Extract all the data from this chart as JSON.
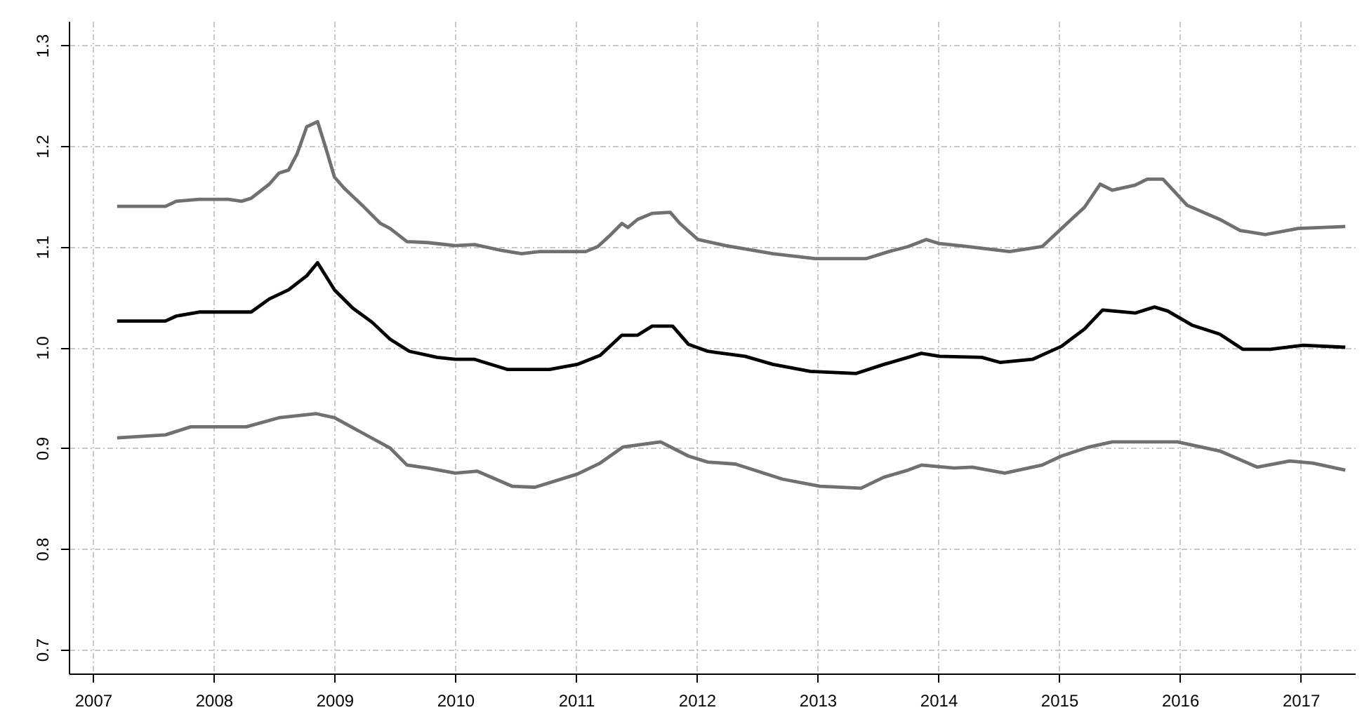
{
  "chart_data": {
    "type": "line",
    "xlim": [
      2006.8,
      2017.45
    ],
    "ylim": [
      0.676,
      1.324
    ],
    "xticks": [
      2007,
      2008,
      2009,
      2010,
      2011,
      2012,
      2013,
      2014,
      2015,
      2016,
      2017
    ],
    "yticks": [
      0.7,
      0.8,
      0.9,
      {
        "value": 1,
        "label": "1.0"
      },
      1.1,
      1.2,
      1.3
    ],
    "grid": true,
    "marker": "none",
    "line_style": "solid",
    "series": [
      {
        "color": "#707070",
        "x": [
          2007.2,
          2007.6,
          2007.69,
          2007.88,
          2008.12,
          2008.23,
          2008.31,
          2008.46,
          2008.54,
          2008.62,
          2008.69,
          2008.77,
          2008.86,
          2008.92,
          2009.0,
          2009.08,
          2009.23,
          2009.38,
          2009.46,
          2009.6,
          2009.77,
          2010.0,
          2010.16,
          2010.39,
          2010.55,
          2010.7,
          2011.08,
          2011.18,
          2011.28,
          2011.38,
          2011.43,
          2011.51,
          2011.63,
          2011.78,
          2011.86,
          2012.01,
          2012.24,
          2012.63,
          2012.98,
          2013.4,
          2013.59,
          2013.75,
          2013.9,
          2014.01,
          2014.24,
          2014.59,
          2014.86,
          2015.02,
          2015.21,
          2015.34,
          2015.44,
          2015.63,
          2015.73,
          2015.86,
          2016.06,
          2016.33,
          2016.5,
          2016.71,
          2016.98,
          2017.37
        ],
        "values": [
          1.14,
          1.14,
          1.145,
          1.147,
          1.147,
          1.145,
          1.148,
          1.162,
          1.173,
          1.176,
          1.192,
          1.219,
          1.224,
          1.201,
          1.169,
          1.158,
          1.141,
          1.123,
          1.118,
          1.105,
          1.104,
          1.101,
          1.102,
          1.096,
          1.093,
          1.095,
          1.095,
          1.1,
          1.111,
          1.123,
          1.119,
          1.127,
          1.133,
          1.134,
          1.123,
          1.107,
          1.101,
          1.093,
          1.088,
          1.088,
          1.095,
          1.1,
          1.107,
          1.103,
          1.1,
          1.095,
          1.1,
          1.118,
          1.139,
          1.162,
          1.156,
          1.161,
          1.167,
          1.167,
          1.141,
          1.127,
          1.116,
          1.112,
          1.118,
          1.12
        ]
      },
      {
        "color": "#000000",
        "x": [
          2007.2,
          2007.6,
          2007.69,
          2007.88,
          2008.31,
          2008.46,
          2008.62,
          2008.77,
          2008.86,
          2009.0,
          2009.15,
          2009.31,
          2009.46,
          2009.62,
          2009.85,
          2010.0,
          2010.16,
          2010.43,
          2010.78,
          2011.01,
          2011.2,
          2011.38,
          2011.51,
          2011.63,
          2011.8,
          2011.93,
          2012.09,
          2012.4,
          2012.63,
          2012.94,
          2013.32,
          2013.55,
          2013.75,
          2013.86,
          2014.01,
          2014.36,
          2014.51,
          2014.78,
          2015.02,
          2015.21,
          2015.36,
          2015.63,
          2015.79,
          2015.9,
          2016.1,
          2016.33,
          2016.52,
          2016.75,
          2017.02,
          2017.37
        ],
        "values": [
          1.026,
          1.026,
          1.031,
          1.035,
          1.035,
          1.048,
          1.057,
          1.071,
          1.084,
          1.057,
          1.039,
          1.025,
          1.008,
          0.996,
          0.99,
          0.988,
          0.988,
          0.978,
          0.978,
          0.983,
          0.992,
          1.012,
          1.012,
          1.021,
          1.021,
          1.003,
          0.996,
          0.991,
          0.983,
          0.976,
          0.974,
          0.983,
          0.99,
          0.994,
          0.991,
          0.99,
          0.985,
          0.988,
          1.001,
          1.018,
          1.037,
          1.034,
          1.04,
          1.036,
          1.022,
          1.013,
          0.998,
          0.998,
          1.002,
          1.0
        ]
      },
      {
        "color": "#707070",
        "x": [
          2007.2,
          2007.6,
          2007.81,
          2008.27,
          2008.54,
          2008.85,
          2009.0,
          2009.23,
          2009.46,
          2009.6,
          2009.77,
          2010.0,
          2010.18,
          2010.47,
          2010.66,
          2011.01,
          2011.2,
          2011.39,
          2011.7,
          2011.93,
          2012.09,
          2012.32,
          2012.71,
          2013.02,
          2013.36,
          2013.55,
          2013.75,
          2013.86,
          2014.13,
          2014.28,
          2014.55,
          2014.86,
          2015.02,
          2015.25,
          2015.44,
          2015.98,
          2016.33,
          2016.64,
          2016.91,
          2017.1,
          2017.37
        ],
        "values": [
          0.91,
          0.913,
          0.921,
          0.921,
          0.93,
          0.934,
          0.93,
          0.915,
          0.9,
          0.883,
          0.88,
          0.875,
          0.877,
          0.862,
          0.861,
          0.874,
          0.885,
          0.901,
          0.906,
          0.892,
          0.886,
          0.884,
          0.869,
          0.862,
          0.86,
          0.871,
          0.878,
          0.883,
          0.88,
          0.881,
          0.875,
          0.883,
          0.892,
          0.901,
          0.906,
          0.906,
          0.897,
          0.881,
          0.887,
          0.885,
          0.878
        ]
      }
    ]
  }
}
